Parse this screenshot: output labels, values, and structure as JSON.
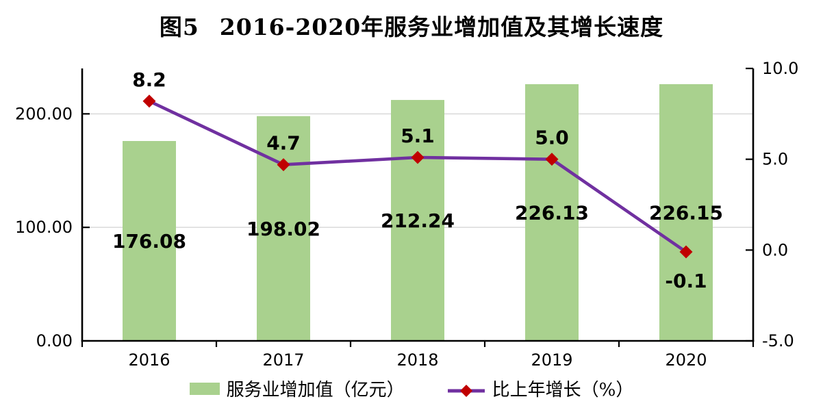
{
  "title": {
    "prefix": "图5",
    "main": "2016-2020年服务业增加值及其增长速度"
  },
  "chart_data": {
    "type": "bar",
    "subtype": "combo bar+line, dual axis",
    "title": "图5 2016-2020年服务业增加值及其增长速度",
    "categories": [
      "2016",
      "2017",
      "2018",
      "2019",
      "2020"
    ],
    "series": [
      {
        "name": "服务业增加值（亿元）",
        "type": "bar",
        "axis": "left",
        "values": [
          176.08,
          198.02,
          212.24,
          226.13,
          226.15
        ],
        "data_labels": [
          "176.08",
          "198.02",
          "212.24",
          "226.13",
          "226.15"
        ],
        "data_label_position": "inside-center",
        "color": "#a9d18e"
      },
      {
        "name": "比上年增长（%）",
        "type": "line",
        "axis": "right",
        "values": [
          8.2,
          4.7,
          5.1,
          5.0,
          -0.1
        ],
        "data_labels": [
          "8.2",
          "4.7",
          "5.1",
          "5.0",
          "-0.1"
        ],
        "data_label_positions": [
          "above",
          "above",
          "above",
          "above",
          "below"
        ],
        "line_color": "#7030a0",
        "marker": "diamond",
        "marker_color": "#c00000"
      }
    ],
    "left_axis": {
      "tick_labels": [
        "0.00",
        "100.00",
        "200.00"
      ],
      "tick_values": [
        0,
        100,
        200
      ],
      "range": [
        0,
        240
      ]
    },
    "right_axis": {
      "tick_labels": [
        "-5.0",
        "0.0",
        "5.0",
        "10.0"
      ],
      "tick_values": [
        -5,
        0,
        5,
        10
      ],
      "range": [
        -5,
        10
      ]
    },
    "x_axis": {
      "labels": [
        "2016",
        "2017",
        "2018",
        "2019",
        "2020"
      ]
    },
    "grid": "horizontal gridlines at left-axis ticks",
    "legend_position": "bottom"
  },
  "legend": {
    "items": [
      {
        "label": "服务业增加值（亿元）",
        "swatch": "bar"
      },
      {
        "label": "比上年增长（%）",
        "swatch": "line-marker"
      }
    ]
  },
  "colors": {
    "background": "#ffffff",
    "bar": "#a9d18e",
    "line": "#7030a0",
    "marker": "#c00000",
    "grid": "#d9d9d9",
    "axis": "#000000",
    "text": "#000000"
  }
}
